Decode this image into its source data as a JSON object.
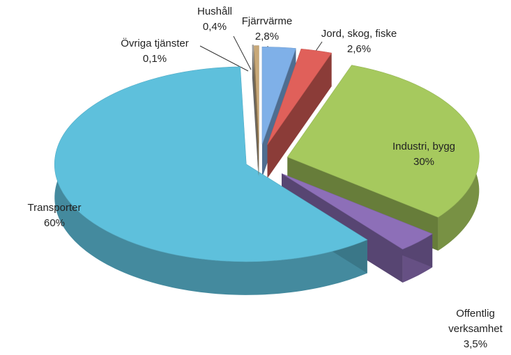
{
  "chart_data": {
    "type": "pie3d",
    "categories": [
      "Fjärrvärme",
      "Jord, skog, fiske",
      "Industri, bygg",
      "Offentlig verksamhet",
      "Transporter",
      "Övriga tjänster",
      "Hushåll"
    ],
    "values": [
      2.8,
      2.6,
      30,
      3.5,
      60,
      0.1,
      0.4
    ],
    "value_labels": [
      "2,8%",
      "2,6%",
      "30%",
      "3,5%",
      "60%",
      "0,1%",
      "0,4%"
    ],
    "colors": [
      "#7fb0e8",
      "#e0605a",
      "#a6c95e",
      "#8d6fb8",
      "#5ec0dc",
      "#a8a8a8",
      "#c8a878"
    ]
  }
}
